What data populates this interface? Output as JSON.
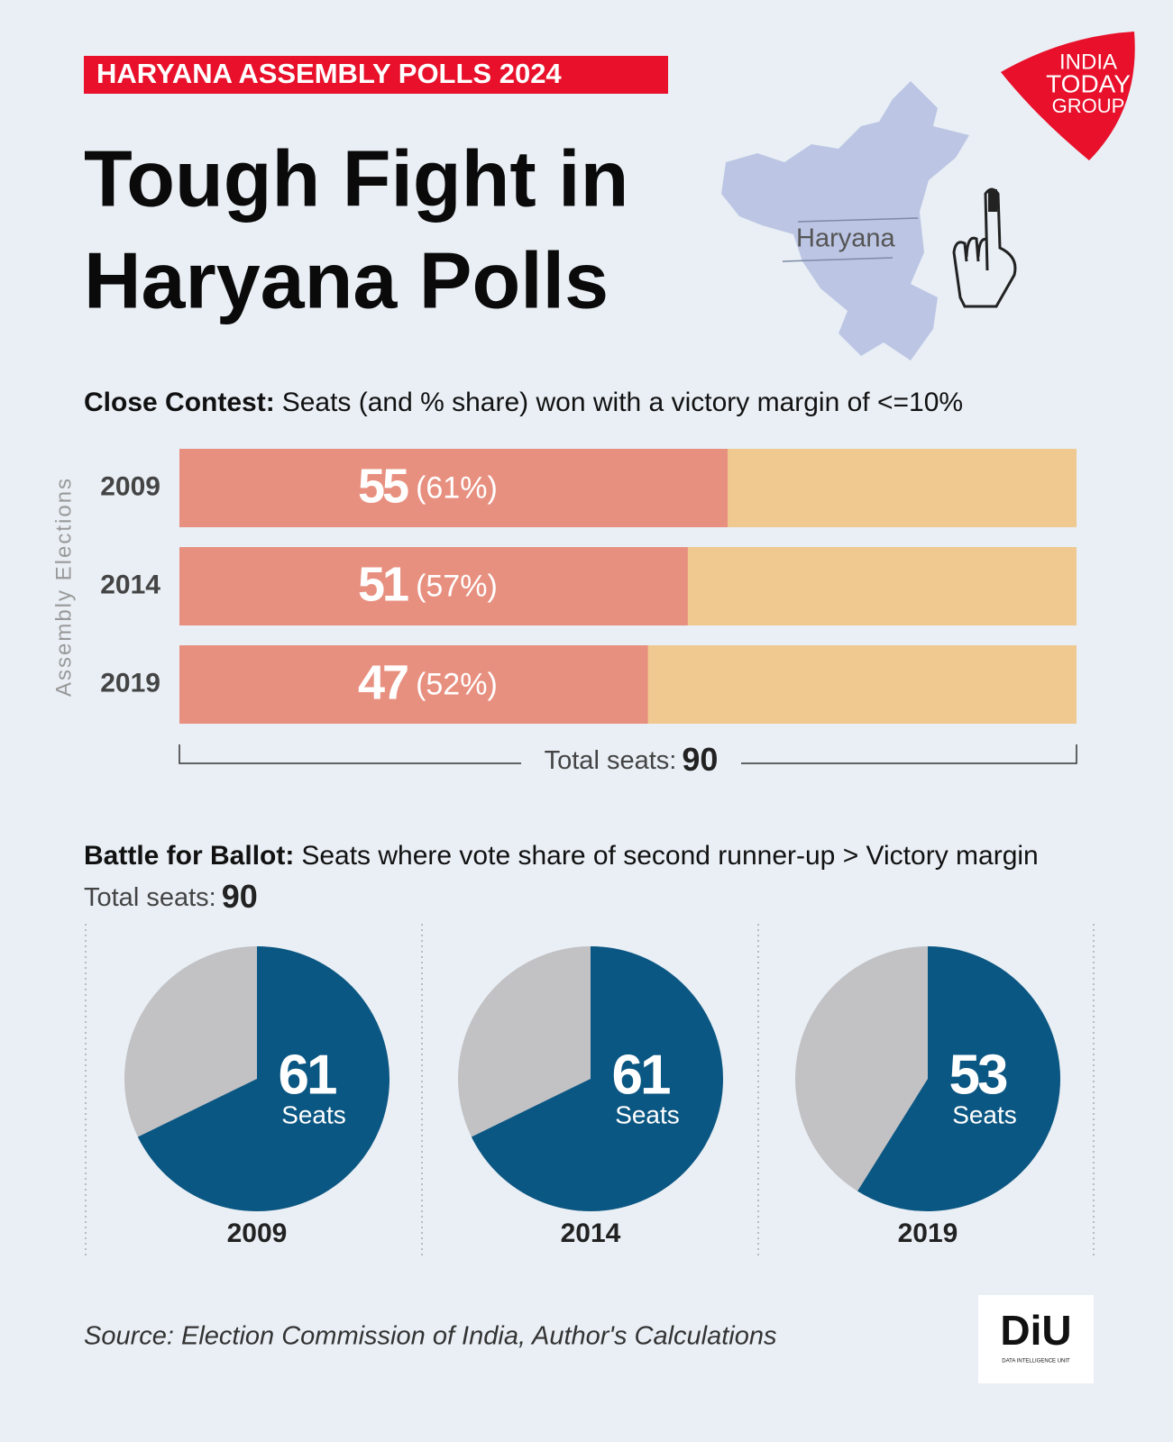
{
  "header": {
    "tag": "HARYANA ASSEMBLY POLLS 2024",
    "title_lines": [
      "Tough Fight in",
      "Haryana Polls"
    ],
    "map_label": "Haryana",
    "logo_lines": [
      "INDIA",
      "TODAY",
      "GROUP"
    ]
  },
  "chart_data": [
    {
      "type": "bar",
      "title_bold": "Close Contest:",
      "title": "Seats (and % share) won with a victory margin of <=10%",
      "y_label": "Assembly Elections",
      "categories": [
        "2009",
        "2014",
        "2019"
      ],
      "values": [
        55,
        51,
        47
      ],
      "shares": [
        61,
        57,
        52
      ],
      "share_labels": [
        "(61%)",
        "(57%)",
        "(52%)"
      ],
      "color": "#e89080",
      "track_color": "#efc990",
      "xlim": [
        0,
        90
      ],
      "total_label": "Total seats:",
      "total": 90
    },
    {
      "type": "pie",
      "title_bold": "Battle for Ballot:",
      "title": "Seats where vote share of second runner-up > Victory margin",
      "total_label": "Total seats:",
      "total": 90,
      "categories": [
        "2009",
        "2014",
        "2019"
      ],
      "values": [
        61,
        61,
        53
      ],
      "unit_label": "Seats",
      "color": "#0b5783",
      "rest_color": "#c2c2c4"
    }
  ],
  "footer": {
    "source": "Source: Election Commission of India, Author's Calculations",
    "logo_text": "DiU",
    "logo_caption": "DATA INTELLIGENCE UNIT"
  }
}
